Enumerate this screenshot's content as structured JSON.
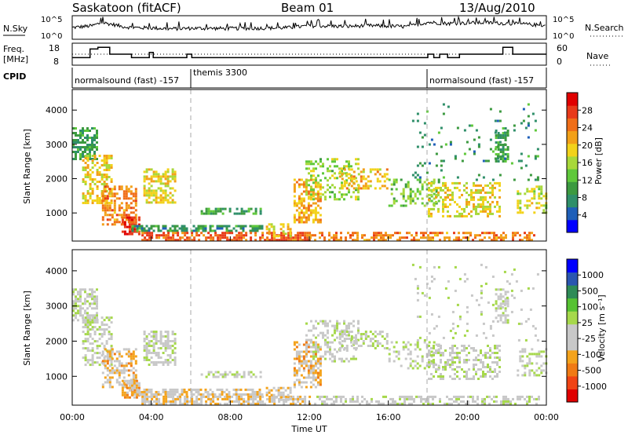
{
  "header": {
    "station": "Saskatoon (fitACF)",
    "beam": "Beam 01",
    "date": "13/Aug/2010"
  },
  "nsky_panel": {
    "left_label": "N.Sky",
    "left_ticks": [
      "10^5",
      "10^0"
    ],
    "right_label": "N.Search",
    "right_ticks": [
      "10^5",
      "10^0"
    ]
  },
  "freq_panel": {
    "left_label_1": "Freq.",
    "left_label_2": "[MHz]",
    "left_ticks": [
      "18",
      "8"
    ],
    "right_label": "Nave",
    "right_ticks": [
      "60",
      "0"
    ]
  },
  "cpid_panel": {
    "label": "CPID",
    "segments": [
      {
        "label": "normalsound (fast) -157",
        "start_h": 0
      },
      {
        "label": "themis 3300",
        "start_h": 6
      },
      {
        "label": "normalsound (fast) -157",
        "start_h": 18
      }
    ]
  },
  "chart_data": [
    {
      "type": "line",
      "title": "N.Sky / N.Search",
      "x_unit": "hours UT",
      "xlim": [
        0,
        24
      ],
      "ylabel_left": "N.Sky",
      "ylabel_right": "N.Search",
      "y_scale": "log",
      "ylim": [
        1,
        100000
      ],
      "series": [
        {
          "name": "N.Sky",
          "x": [
            0,
            1,
            1.5,
            2,
            2.5,
            3,
            4,
            5,
            6,
            8,
            10,
            11,
            12,
            13,
            14,
            15,
            16,
            17,
            18,
            19,
            20,
            21,
            22,
            23,
            24
          ],
          "y": [
            300,
            800,
            5000,
            2000,
            600,
            300,
            250,
            150,
            200,
            180,
            220,
            300,
            800,
            700,
            600,
            900,
            700,
            500,
            6000,
            3000,
            4000,
            5000,
            3000,
            2000,
            800
          ]
        }
      ]
    },
    {
      "type": "line",
      "title": "Freq. / Nave",
      "x_unit": "hours UT",
      "xlim": [
        0,
        24
      ],
      "ylabel_left": "Freq. [MHz]",
      "ylim_left": [
        8,
        18
      ],
      "ylabel_right": "Nave",
      "ylim_right": [
        0,
        60
      ],
      "series": [
        {
          "name": "Freq. [MHz]",
          "style": "solid",
          "x": [
            0,
            0.9,
            0.9,
            1.3,
            1.3,
            1.9,
            1.9,
            3.0,
            3.0,
            3.9,
            3.9,
            4.1,
            4.1,
            5.8,
            5.8,
            6.05,
            6.05,
            18.0,
            18.0,
            18.3,
            18.3,
            18.6,
            18.6,
            19.0,
            19.0,
            19.6,
            19.6,
            21.8,
            21.8,
            22.3,
            22.3,
            24
          ],
          "y": [
            11,
            11,
            16,
            16,
            17,
            17,
            13,
            13,
            11,
            11,
            14,
            14,
            11,
            11,
            13,
            13,
            11,
            11,
            13,
            13,
            11,
            11,
            13,
            13,
            11,
            11,
            13,
            13,
            17,
            17,
            13,
            13
          ]
        },
        {
          "name": "Nave",
          "style": "dotted",
          "x": [
            0,
            24
          ],
          "y": [
            30,
            30
          ]
        }
      ]
    },
    {
      "type": "heatmap",
      "title": "",
      "xlabel": "Time UT",
      "ylabel": "Slant Range [km]",
      "xlim": [
        0,
        24
      ],
      "ylim": [
        180,
        4600
      ],
      "x_ticks": [
        "00:00",
        "04:00",
        "08:00",
        "12:00",
        "16:00",
        "20:00",
        "00:00"
      ],
      "y_ticks": [
        1000,
        2000,
        3000,
        4000
      ],
      "colorbar": {
        "label": "Power [dB]",
        "ticks": [
          4,
          8,
          12,
          16,
          20,
          24,
          28
        ],
        "range": [
          0,
          30
        ],
        "colors": [
          "#0000ff",
          "#1f5fb8",
          "#2f8f6a",
          "#3c9a40",
          "#5fc83b",
          "#a8d83a",
          "#f2d21a",
          "#f2a018",
          "#f06e18",
          "#e83a1a",
          "#e00000"
        ]
      },
      "regions": [
        {
          "x": [
            0.0,
            1.3
          ],
          "y": [
            2600,
            3500
          ],
          "v": 9,
          "density": 0.6
        },
        {
          "x": [
            0.5,
            2.0
          ],
          "y": [
            1300,
            2700
          ],
          "v": 18,
          "density": 0.5
        },
        {
          "x": [
            1.5,
            3.2
          ],
          "y": [
            700,
            1800
          ],
          "v": 22,
          "density": 0.55
        },
        {
          "x": [
            2.5,
            3.4
          ],
          "y": [
            400,
            900
          ],
          "v": 26,
          "density": 0.7
        },
        {
          "x": [
            3.0,
            9.6
          ],
          "y": [
            450,
            650
          ],
          "v": 8,
          "density": 0.7
        },
        {
          "x": [
            3.5,
            12.0
          ],
          "y": [
            200,
            450
          ],
          "v": 24,
          "density": 0.65
        },
        {
          "x": [
            12.0,
            23.6
          ],
          "y": [
            200,
            450
          ],
          "v": 22,
          "density": 0.5
        },
        {
          "x": [
            3.6,
            5.2
          ],
          "y": [
            1300,
            2300
          ],
          "v": 17,
          "density": 0.55
        },
        {
          "x": [
            6.5,
            9.5
          ],
          "y": [
            950,
            1150
          ],
          "v": 10,
          "density": 0.5
        },
        {
          "x": [
            9.8,
            11.0
          ],
          "y": [
            350,
            700
          ],
          "v": 18,
          "density": 0.55
        },
        {
          "x": [
            11.2,
            12.6
          ],
          "y": [
            700,
            2000
          ],
          "v": 20,
          "density": 0.55
        },
        {
          "x": [
            11.8,
            14.5
          ],
          "y": [
            1400,
            2600
          ],
          "v": 14,
          "density": 0.35
        },
        {
          "x": [
            13.5,
            16.0
          ],
          "y": [
            1700,
            2300
          ],
          "v": 19,
          "density": 0.4
        },
        {
          "x": [
            16.0,
            18.6
          ],
          "y": [
            1200,
            2000
          ],
          "v": 13,
          "density": 0.3
        },
        {
          "x": [
            18.0,
            21.6
          ],
          "y": [
            900,
            1900
          ],
          "v": 17,
          "density": 0.4
        },
        {
          "x": [
            21.4,
            22.1
          ],
          "y": [
            2500,
            3500
          ],
          "v": 10,
          "density": 0.55
        },
        {
          "x": [
            22.5,
            24.0
          ],
          "y": [
            1000,
            1800
          ],
          "v": 16,
          "density": 0.35
        },
        {
          "x": [
            17.2,
            23.6
          ],
          "y": [
            2000,
            4200
          ],
          "v": 8,
          "density": 0.06
        }
      ]
    },
    {
      "type": "heatmap",
      "title": "",
      "xlabel": "Time UT",
      "ylabel": "Slant Range [km]",
      "xlim": [
        0,
        24
      ],
      "ylim": [
        180,
        4600
      ],
      "x_ticks": [
        "00:00",
        "04:00",
        "08:00",
        "12:00",
        "16:00",
        "20:00",
        "00:00"
      ],
      "y_ticks": [
        1000,
        2000,
        3000,
        4000
      ],
      "colorbar": {
        "label": "Velocity [m s⁻¹]",
        "ticks": [
          "1000",
          "500",
          "100",
          "25",
          "-25",
          "-100",
          "-500",
          "-1000"
        ],
        "range": [
          -1200,
          1200
        ],
        "colors": [
          "#0000ff",
          "#2a56b0",
          "#2e8b57",
          "#56c232",
          "#a6d84b",
          "#c8c8c8",
          "#c8c8c8",
          "#f4a31c",
          "#f07a14",
          "#f04414",
          "#e00000"
        ]
      },
      "regions": [
        {
          "x": [
            0.0,
            1.3
          ],
          "y": [
            2600,
            3500
          ],
          "v": 0,
          "density": 0.6
        },
        {
          "x": [
            0.5,
            2.0
          ],
          "y": [
            1300,
            2700
          ],
          "v": 0,
          "density": 0.5
        },
        {
          "x": [
            1.5,
            3.2
          ],
          "y": [
            700,
            1800
          ],
          "v": -300,
          "density": 0.55
        },
        {
          "x": [
            2.5,
            3.4
          ],
          "y": [
            400,
            900
          ],
          "v": -400,
          "density": 0.7
        },
        {
          "x": [
            3.0,
            9.6
          ],
          "y": [
            450,
            650
          ],
          "v": -200,
          "density": 0.7
        },
        {
          "x": [
            3.5,
            12.0
          ],
          "y": [
            200,
            450
          ],
          "v": -250,
          "density": 0.65
        },
        {
          "x": [
            12.0,
            23.6
          ],
          "y": [
            200,
            450
          ],
          "v": -50,
          "density": 0.45
        },
        {
          "x": [
            3.6,
            5.2
          ],
          "y": [
            1300,
            2300
          ],
          "v": 0,
          "density": 0.55
        },
        {
          "x": [
            6.5,
            9.5
          ],
          "y": [
            950,
            1150
          ],
          "v": 80,
          "density": 0.5
        },
        {
          "x": [
            9.8,
            11.0
          ],
          "y": [
            350,
            700
          ],
          "v": -200,
          "density": 0.55
        },
        {
          "x": [
            11.2,
            12.6
          ],
          "y": [
            700,
            2000
          ],
          "v": -350,
          "density": 0.55
        },
        {
          "x": [
            11.8,
            14.5
          ],
          "y": [
            1400,
            2600
          ],
          "v": 0,
          "density": 0.35
        },
        {
          "x": [
            13.5,
            16.0
          ],
          "y": [
            1700,
            2300
          ],
          "v": 0,
          "density": 0.4
        },
        {
          "x": [
            16.0,
            18.6
          ],
          "y": [
            1200,
            2000
          ],
          "v": 0,
          "density": 0.3
        },
        {
          "x": [
            18.0,
            21.6
          ],
          "y": [
            900,
            1900
          ],
          "v": 0,
          "density": 0.4
        },
        {
          "x": [
            21.4,
            22.1
          ],
          "y": [
            2500,
            3500
          ],
          "v": 0,
          "density": 0.55
        },
        {
          "x": [
            22.5,
            24.0
          ],
          "y": [
            1000,
            1800
          ],
          "v": 0,
          "density": 0.35
        },
        {
          "x": [
            17.2,
            23.6
          ],
          "y": [
            2000,
            4200
          ],
          "v": 0,
          "density": 0.06
        }
      ]
    }
  ]
}
